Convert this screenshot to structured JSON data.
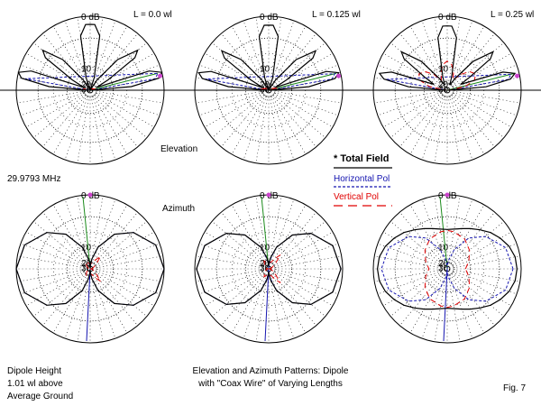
{
  "figure": {
    "frequency": "29.9793 MHz",
    "elevation_label": "Elevation",
    "azimuth_label": "Azimuth",
    "height_lines": [
      "Dipole Height",
      "1.01 wl above",
      "Average Ground"
    ],
    "caption_lines": [
      "Elevation and Azimuth Patterns: Dipole",
      "with \"Coax Wire\" of Varying Lengths"
    ],
    "fig_label": "Fig. 7"
  },
  "legend": {
    "total": "* Total Field",
    "horizontal": "Horizontal Pol",
    "vertical": "Vertical Pol"
  },
  "colors": {
    "total": "#000000",
    "horizontal": "#1515b0",
    "vertical": "#e00000",
    "grid": "#000000",
    "marker": "#cc44cc",
    "azimuth_line": "#1a8a1a"
  },
  "chart_data": [
    {
      "type": "polar-elevation",
      "title": "L = 0.0 wl",
      "scale": {
        "max_db": 0,
        "ring_labels": [
          "0 dB",
          "10",
          "20",
          "30"
        ]
      },
      "total_field": {
        "angles_deg": [
          0,
          5,
          10,
          14,
          18,
          24,
          30,
          36,
          40,
          48,
          56,
          64,
          72,
          80,
          86,
          90,
          94,
          100,
          108,
          116,
          124,
          132,
          140,
          144,
          150,
          156,
          162,
          166,
          170,
          175,
          180
        ],
        "gain_db": [
          -40,
          -5.0,
          -0.5,
          0.0,
          -1.5,
          -20,
          -11,
          -2.5,
          -1.5,
          -5,
          -15,
          -40,
          -15,
          -2.5,
          -1.0,
          -1.0,
          -1.0,
          -2.5,
          -15,
          -40,
          -15,
          -5,
          -1.5,
          -2.5,
          -11,
          -20,
          -1.5,
          0.0,
          -0.5,
          -5.0,
          -40
        ]
      },
      "horizontal_pol": {
        "angles_deg": [
          0,
          10,
          14,
          170,
          180
        ],
        "gain_db": [
          -40,
          -1,
          -0.5,
          -1,
          -40
        ]
      },
      "vertical_pol": {
        "angles_deg": [
          0,
          10,
          14,
          170,
          180
        ],
        "gain_db": [
          -40,
          -20,
          -22,
          -20,
          -40
        ]
      }
    },
    {
      "type": "polar-elevation",
      "title": "L = 0.125 wl",
      "scale": {
        "max_db": 0,
        "ring_labels": [
          "0 dB",
          "10",
          "20",
          "30"
        ]
      },
      "total_field": {
        "angles_deg": [
          0,
          5,
          10,
          14,
          18,
          24,
          30,
          36,
          40,
          48,
          56,
          64,
          72,
          80,
          86,
          90,
          94,
          100,
          108,
          116,
          124,
          132,
          140,
          144,
          150,
          156,
          162,
          166,
          170,
          175,
          180
        ],
        "gain_db": [
          -40,
          -5.2,
          -0.8,
          -0.2,
          -1.7,
          -20,
          -11,
          -2.6,
          -1.6,
          -5,
          -15,
          -40,
          -15,
          -2.6,
          -1.1,
          -1.1,
          -1.1,
          -2.6,
          -15,
          -40,
          -15,
          -5,
          -1.6,
          -2.6,
          -11,
          -20,
          -1.7,
          -0.2,
          -0.8,
          -5.2,
          -40
        ]
      },
      "horizontal_pol": {
        "angles_deg": [
          0,
          10,
          14,
          170,
          180
        ],
        "gain_db": [
          -40,
          -1.2,
          -0.7,
          -1.2,
          -40
        ]
      },
      "vertical_pol": {
        "angles_deg": [
          0,
          10,
          14,
          170,
          180
        ],
        "gain_db": [
          -40,
          -18,
          -19,
          -18,
          -40
        ]
      }
    },
    {
      "type": "polar-elevation",
      "title": "L = 0.25 wl",
      "scale": {
        "max_db": 0,
        "ring_labels": [
          "0 dB",
          "10",
          "20",
          "30"
        ]
      },
      "total_field": {
        "angles_deg": [
          0,
          5,
          10,
          14,
          18,
          24,
          30,
          36,
          40,
          48,
          56,
          64,
          72,
          80,
          86,
          90,
          94,
          100,
          108,
          116,
          124,
          132,
          140,
          144,
          150,
          156,
          162,
          166,
          170,
          175,
          180
        ],
        "gain_db": [
          -40,
          -5.5,
          -1.2,
          -0.5,
          -2.0,
          -14,
          -9,
          -2.8,
          -1.8,
          -5.5,
          -14,
          -22,
          -14,
          -2.8,
          -1.2,
          -1.2,
          -1.2,
          -2.8,
          -14,
          -22,
          -14,
          -5.5,
          -1.8,
          -2.8,
          -9,
          -14,
          -2.0,
          -0.5,
          -1.2,
          -5.5,
          -40
        ]
      },
      "horizontal_pol": {
        "angles_deg": [
          0,
          10,
          14,
          170,
          180
        ],
        "gain_db": [
          -40,
          -1.5,
          -1.0,
          -1.5,
          -40
        ]
      },
      "vertical_pol": {
        "angles_deg": [
          0,
          6,
          12,
          20,
          30,
          40,
          50,
          60,
          70,
          80,
          90,
          100,
          110,
          120,
          130,
          140,
          150,
          160,
          168,
          174,
          180
        ],
        "gain_db": [
          -40,
          -25,
          -12,
          -8,
          -7,
          -8,
          -11,
          -16,
          -12,
          -9,
          -8,
          -9,
          -12,
          -16,
          -11,
          -8,
          -7,
          -8,
          -12,
          -25,
          -40
        ]
      }
    },
    {
      "type": "polar-azimuth",
      "scale": {
        "max_db": 0,
        "ring_labels": [
          "0 dB",
          "10",
          "20",
          "30"
        ]
      },
      "total_field": {
        "angles_deg": [
          0,
          20,
          40,
          55,
          70,
          80,
          85,
          90,
          95,
          100,
          110,
          125,
          140,
          160,
          180,
          200,
          220,
          235,
          250,
          260,
          265,
          270,
          275,
          280,
          290,
          305,
          320,
          340
        ],
        "gain_db": [
          0,
          -0.5,
          -2.3,
          -4.8,
          -10,
          -17,
          -24,
          -40,
          -24,
          -17,
          -10,
          -4.8,
          -2.3,
          -0.5,
          0,
          -0.5,
          -2.3,
          -4.8,
          -10,
          -17,
          -24,
          -40,
          -24,
          -17,
          -10,
          -4.8,
          -2.3,
          -0.5
        ]
      },
      "horizontal_pol": {
        "angles_deg": [
          0,
          20,
          40,
          55,
          70,
          80,
          85,
          90,
          95,
          100,
          110,
          125,
          140,
          160,
          180,
          200,
          220,
          235,
          250,
          260,
          265,
          270,
          275,
          280,
          290,
          305,
          320,
          340
        ],
        "gain_db": [
          0,
          -0.5,
          -2.3,
          -4.8,
          -10,
          -17,
          -24,
          -40,
          -24,
          -17,
          -10,
          -4.8,
          -2.3,
          -0.5,
          0,
          -0.5,
          -2.3,
          -4.8,
          -10,
          -17,
          -24,
          -40,
          -24,
          -17,
          -10,
          -4.8,
          -2.3,
          -0.5
        ]
      },
      "vertical_pol": {
        "angles_deg": [
          0,
          20,
          40,
          50,
          60,
          70,
          90,
          110,
          120,
          130,
          140,
          160,
          180,
          200,
          220,
          230,
          240,
          250,
          270,
          290,
          300,
          310,
          320,
          340
        ],
        "gain_db": [
          -40,
          -27,
          -19,
          -13,
          -17,
          -21,
          -24,
          -21,
          -19,
          -22,
          -24,
          -30,
          -40,
          -30,
          -24,
          -22,
          -19,
          -21,
          -24,
          -21,
          -17,
          -13,
          -19,
          -27
        ]
      }
    },
    {
      "type": "polar-azimuth",
      "scale": {
        "max_db": 0,
        "ring_labels": [
          "0 dB",
          "10",
          "20",
          "30"
        ]
      },
      "total_field": {
        "angles_deg": [
          0,
          20,
          40,
          55,
          70,
          80,
          85,
          90,
          95,
          100,
          110,
          125,
          140,
          160,
          180,
          200,
          220,
          235,
          250,
          260,
          265,
          270,
          275,
          280,
          290,
          305,
          320,
          340
        ],
        "gain_db": [
          -0.2,
          -0.7,
          -2.5,
          -5.0,
          -10,
          -16,
          -21,
          -28,
          -21,
          -16,
          -10,
          -5.0,
          -2.5,
          -0.7,
          -0.2,
          -0.7,
          -2.5,
          -5.0,
          -10,
          -16,
          -21,
          -28,
          -21,
          -16,
          -10,
          -5.0,
          -2.5,
          -0.7
        ]
      },
      "horizontal_pol": {
        "angles_deg": [
          0,
          20,
          40,
          55,
          70,
          80,
          85,
          90,
          95,
          100,
          110,
          125,
          140,
          160,
          180,
          200,
          220,
          235,
          250,
          260,
          265,
          270,
          275,
          280,
          290,
          305,
          320,
          340
        ],
        "gain_db": [
          -0.2,
          -0.7,
          -2.5,
          -5.0,
          -10,
          -17,
          -24,
          -40,
          -24,
          -17,
          -10,
          -5.0,
          -2.5,
          -0.7,
          -0.2,
          -0.7,
          -2.5,
          -5.0,
          -10,
          -17,
          -24,
          -40,
          -24,
          -17,
          -10,
          -5.0,
          -2.5,
          -0.7
        ]
      },
      "vertical_pol": {
        "angles_deg": [
          0,
          20,
          40,
          50,
          60,
          70,
          90,
          110,
          120,
          130,
          140,
          160,
          180,
          200,
          220,
          230,
          240,
          250,
          270,
          290,
          300,
          310,
          320,
          340
        ],
        "gain_db": [
          -40,
          -26,
          -18,
          -12,
          -16,
          -20,
          -22,
          -20,
          -18,
          -21,
          -22,
          -28,
          -40,
          -28,
          -22,
          -21,
          -18,
          -20,
          -22,
          -20,
          -16,
          -12,
          -18,
          -26
        ]
      }
    },
    {
      "type": "polar-azimuth",
      "scale": {
        "max_db": 0,
        "ring_labels": [
          "0 dB",
          "10",
          "20",
          "30"
        ]
      },
      "total_field": {
        "angles_deg": [
          0,
          10,
          20,
          30,
          40,
          50,
          60,
          70,
          80,
          90,
          100,
          110,
          120,
          130,
          140,
          150,
          160,
          170,
          180,
          190,
          200,
          210,
          220,
          230,
          240,
          250,
          260,
          270,
          280,
          290,
          300,
          310,
          320,
          330,
          340,
          350
        ],
        "gain_db": [
          -0.5,
          -0.6,
          -1.0,
          -1.6,
          -2.3,
          -3.2,
          -4.0,
          -4.7,
          -5.2,
          -5.4,
          -5.2,
          -4.7,
          -4.0,
          -3.2,
          -2.3,
          -1.6,
          -1.0,
          -0.6,
          -0.5,
          -0.6,
          -1.0,
          -1.6,
          -2.3,
          -3.2,
          -4.0,
          -4.7,
          -5.2,
          -5.4,
          -5.2,
          -4.7,
          -4.0,
          -3.2,
          -2.3,
          -1.6,
          -1.0,
          -0.6
        ]
      },
      "horizontal_pol": {
        "angles_deg": [
          0,
          20,
          40,
          55,
          70,
          80,
          85,
          90,
          95,
          100,
          110,
          125,
          140,
          160,
          180,
          200,
          220,
          235,
          250,
          260,
          265,
          270,
          275,
          280,
          290,
          305,
          320,
          340
        ],
        "gain_db": [
          -1.0,
          -1.5,
          -3.3,
          -5.8,
          -11,
          -18,
          -25,
          -40,
          -25,
          -18,
          -11,
          -5.8,
          -3.3,
          -1.5,
          -1.0,
          -1.5,
          -3.3,
          -5.8,
          -11,
          -18,
          -25,
          -40,
          -25,
          -18,
          -11,
          -5.8,
          -3.3,
          -1.5
        ]
      },
      "vertical_pol": {
        "angles_deg": [
          0,
          20,
          40,
          60,
          80,
          90,
          100,
          120,
          140,
          160,
          180,
          200,
          220,
          240,
          260,
          270,
          280,
          300,
          320,
          340
        ],
        "gain_db": [
          -12,
          -10,
          -8,
          -6.5,
          -5.8,
          -5.6,
          -5.8,
          -6.5,
          -8,
          -10,
          -12,
          -10,
          -8,
          -6.5,
          -5.8,
          -5.6,
          -5.8,
          -6.5,
          -8,
          -10
        ]
      }
    }
  ]
}
